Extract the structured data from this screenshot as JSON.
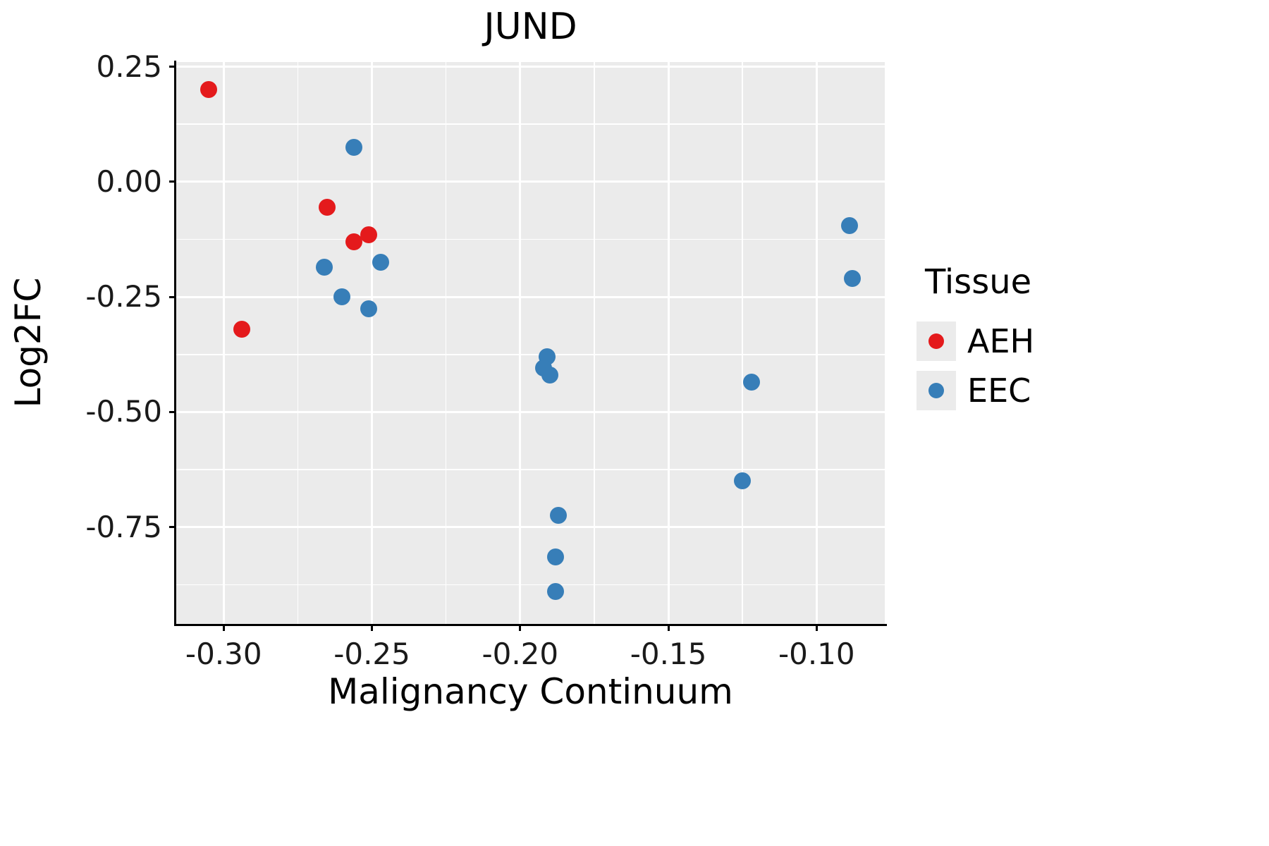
{
  "chart_data": {
    "type": "scatter",
    "title": "JUND",
    "xlabel": "Malignancy Continuum",
    "ylabel": "Log2FC",
    "xlim": [
      -0.316,
      -0.077
    ],
    "ylim": [
      -0.96,
      0.26
    ],
    "x_ticks": [
      -0.3,
      -0.25,
      -0.2,
      -0.15,
      -0.1
    ],
    "x_tick_labels": [
      "-0.30",
      "-0.25",
      "-0.20",
      "-0.15",
      "-0.10"
    ],
    "y_ticks": [
      0.25,
      0.0,
      -0.25,
      -0.5,
      -0.75
    ],
    "y_tick_labels": [
      "0.25",
      "0.00",
      "-0.25",
      "-0.50",
      "-0.75"
    ],
    "grid": true,
    "panel_bg": "#EBEBEB",
    "grid_color": "#FFFFFF",
    "legend": {
      "title": "Tissue",
      "position": "right",
      "entries": [
        {
          "label": "AEH",
          "color": "#E41A1C"
        },
        {
          "label": "EEC",
          "color": "#377EB8"
        }
      ]
    },
    "series": [
      {
        "name": "AEH",
        "color": "#E41A1C",
        "points": [
          [
            -0.305,
            0.2
          ],
          [
            -0.294,
            -0.32
          ],
          [
            -0.265,
            -0.055
          ],
          [
            -0.256,
            -0.13
          ],
          [
            -0.251,
            -0.115
          ]
        ]
      },
      {
        "name": "EEC",
        "color": "#377EB8",
        "points": [
          [
            -0.256,
            0.075
          ],
          [
            -0.266,
            -0.185
          ],
          [
            -0.26,
            -0.25
          ],
          [
            -0.251,
            -0.275
          ],
          [
            -0.247,
            -0.175
          ],
          [
            -0.191,
            -0.38
          ],
          [
            -0.192,
            -0.405
          ],
          [
            -0.19,
            -0.42
          ],
          [
            -0.187,
            -0.725
          ],
          [
            -0.188,
            -0.815
          ],
          [
            -0.188,
            -0.89
          ],
          [
            -0.122,
            -0.435
          ],
          [
            -0.125,
            -0.65
          ],
          [
            -0.089,
            -0.095
          ],
          [
            -0.088,
            -0.21
          ]
        ]
      }
    ]
  }
}
